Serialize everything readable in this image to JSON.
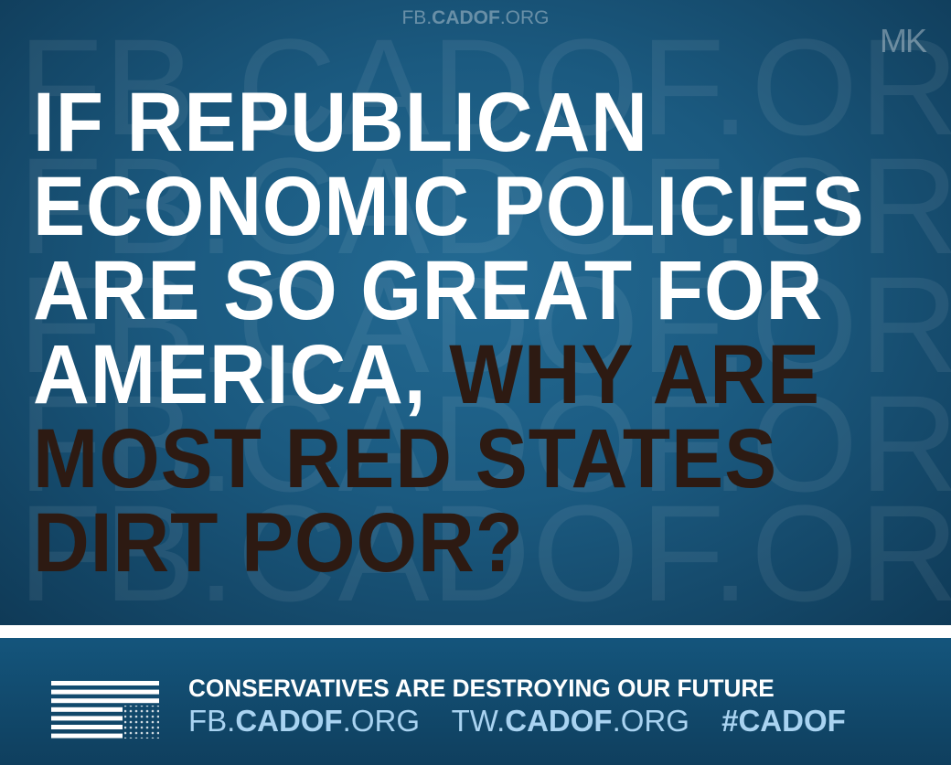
{
  "watermark": {
    "text": "FB.CADOF.ORG",
    "top_url_prefix": "FB.",
    "top_url_bold": "CADOF",
    "top_url_suffix": ".ORG",
    "initials": "MK"
  },
  "headline": {
    "lines": [
      {
        "white": "IF REPUBLICAN",
        "dark": ""
      },
      {
        "white": "ECONOMIC POLICIES",
        "dark": ""
      },
      {
        "white": "ARE SO GREAT FOR",
        "dark": ""
      },
      {
        "white": "AMERICA, ",
        "dark": "WHY ARE"
      },
      {
        "white": "",
        "dark": "MOST RED STATES"
      },
      {
        "white": "",
        "dark": "DIRT POOR?"
      }
    ]
  },
  "footer": {
    "tagline": "CONSERVATIVES ARE DESTROYING OUR FUTURE",
    "links": [
      {
        "prefix": "FB.",
        "bold": "CADOF",
        "suffix": ".ORG"
      },
      {
        "prefix": "TW.",
        "bold": "CADOF",
        "suffix": ".ORG"
      },
      {
        "prefix": "",
        "bold": "#CADOF",
        "suffix": ""
      }
    ],
    "icon": "upside-down-flag-icon"
  },
  "colors": {
    "background": "#1b5a80",
    "headline_white": "#ffffff",
    "headline_dark": "#2d1a12",
    "link_blue": "#a9d3f1"
  }
}
